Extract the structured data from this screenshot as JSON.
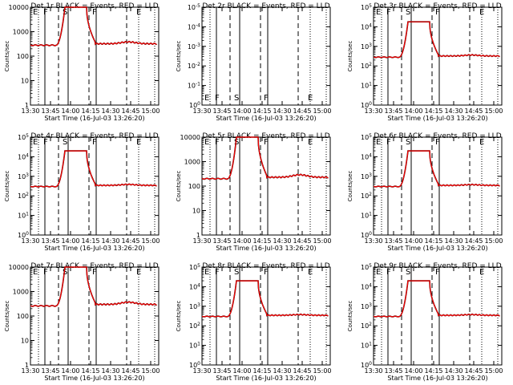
{
  "figure": {
    "xtick_labels": [
      "13:30",
      "13:45",
      "14:00",
      "14:15",
      "14:30",
      "14:45",
      "15:00"
    ],
    "xtick_values": [
      13.5,
      13.75,
      14.0,
      14.25,
      14.5,
      14.75,
      15.0
    ],
    "xlim": [
      13.5,
      15.1
    ],
    "xlabel": "Start Time (16-Jul-03 13:26:20)",
    "ylabel": "Counts/sec",
    "solid_lines": [
      13.68,
      13.97,
      14.32
    ],
    "dashed_lines": [
      13.85,
      14.23,
      14.7
    ],
    "dotted_lines": [
      13.6,
      14.85,
      15.05
    ],
    "region_letters": [
      {
        "label": "E",
        "x": 13.53
      },
      {
        "label": "F",
        "x": 13.66
      },
      {
        "label": "S",
        "x": 13.9
      },
      {
        "label": "F",
        "x": 14.27
      },
      {
        "label": "E",
        "x": 14.82
      }
    ],
    "colors": {
      "events": "#000000",
      "lld": "#ff0000"
    }
  },
  "chart_data": [
    {
      "type": "line",
      "title": "Det 1r BLACK = Events, RED = LLD",
      "scale": "linear_ticks",
      "ylim": [
        1,
        10000
      ],
      "yticks": [
        "1",
        "10",
        "100",
        "1000",
        "10000"
      ],
      "series": [
        {
          "name": "Events",
          "baseline": 280,
          "peak": 10000,
          "bump": 340
        },
        {
          "name": "LLD",
          "baseline": 280,
          "peak": 10000,
          "bump": 340
        }
      ],
      "show_data": true
    },
    {
      "type": "line",
      "title": "Det 2r BLACK = Events, RED = LLD",
      "scale": "exp",
      "ylim": [
        1,
        1e-05
      ],
      "yticks": [
        "10^0",
        "10^-1",
        "10^-2",
        "10^-3",
        "10^-4",
        "10^-5"
      ],
      "series": [],
      "show_data": false
    },
    {
      "type": "line",
      "title": "Det 3r BLACK = Events, RED = LLD",
      "scale": "exp",
      "ylim": [
        1,
        100000
      ],
      "yticks": [
        "10^0",
        "10^1",
        "10^2",
        "10^3",
        "10^4",
        "10^5"
      ],
      "series": [
        {
          "name": "Events",
          "baseline": 280,
          "peak": 18000,
          "bump": 320
        },
        {
          "name": "LLD",
          "baseline": 280,
          "peak": 18000,
          "bump": 320
        }
      ],
      "show_data": true
    },
    {
      "type": "line",
      "title": "Det 4r BLACK = Events, RED = LLD",
      "scale": "exp",
      "ylim": [
        1,
        100000
      ],
      "yticks": [
        "10^0",
        "10^1",
        "10^2",
        "10^3",
        "10^4",
        "10^5"
      ],
      "series": [
        {
          "name": "Events",
          "baseline": 300,
          "peak": 20000,
          "bump": 340
        },
        {
          "name": "LLD",
          "baseline": 300,
          "peak": 20000,
          "bump": 340
        }
      ],
      "show_data": true
    },
    {
      "type": "line",
      "title": "Det 5r BLACK = Events, RED = LLD",
      "scale": "linear_ticks",
      "ylim": [
        1,
        10000
      ],
      "yticks": [
        "1",
        "10",
        "100",
        "1000",
        "10000"
      ],
      "series": [
        {
          "name": "Events",
          "baseline": 200,
          "peak": 10000,
          "bump": 260
        },
        {
          "name": "LLD",
          "baseline": 200,
          "peak": 10000,
          "bump": 260
        }
      ],
      "show_data": true
    },
    {
      "type": "line",
      "title": "Det 6r BLACK = Events, RED = LLD",
      "scale": "exp",
      "ylim": [
        1,
        100000
      ],
      "yticks": [
        "10^0",
        "10^1",
        "10^2",
        "10^3",
        "10^4",
        "10^5"
      ],
      "series": [
        {
          "name": "Events",
          "baseline": 300,
          "peak": 20000,
          "bump": 330
        },
        {
          "name": "LLD",
          "baseline": 300,
          "peak": 20000,
          "bump": 330
        }
      ],
      "show_data": true
    },
    {
      "type": "line",
      "title": "Det 7r BLACK = Events, RED = LLD",
      "scale": "linear_ticks",
      "ylim": [
        1,
        10000
      ],
      "yticks": [
        "1",
        "10",
        "100",
        "1000",
        "10000"
      ],
      "series": [
        {
          "name": "Events",
          "baseline": 260,
          "peak": 10000,
          "bump": 330
        },
        {
          "name": "LLD",
          "baseline": 260,
          "peak": 10000,
          "bump": 330
        }
      ],
      "show_data": true
    },
    {
      "type": "line",
      "title": "Det 8r BLACK = Events, RED = LLD",
      "scale": "exp",
      "ylim": [
        1,
        100000
      ],
      "yticks": [
        "10^0",
        "10^1",
        "10^2",
        "10^3",
        "10^4",
        "10^5"
      ],
      "series": [
        {
          "name": "Events",
          "baseline": 300,
          "peak": 20000,
          "bump": 330
        },
        {
          "name": "LLD",
          "baseline": 300,
          "peak": 20000,
          "bump": 330
        }
      ],
      "show_data": true
    },
    {
      "type": "line",
      "title": "Det 9r BLACK = Events, RED = LLD",
      "scale": "exp",
      "ylim": [
        1,
        100000
      ],
      "yticks": [
        "10^0",
        "10^1",
        "10^2",
        "10^3",
        "10^4",
        "10^5"
      ],
      "series": [
        {
          "name": "Events",
          "baseline": 300,
          "peak": 20000,
          "bump": 330
        },
        {
          "name": "LLD",
          "baseline": 300,
          "peak": 20000,
          "bump": 330
        }
      ],
      "show_data": true
    }
  ]
}
